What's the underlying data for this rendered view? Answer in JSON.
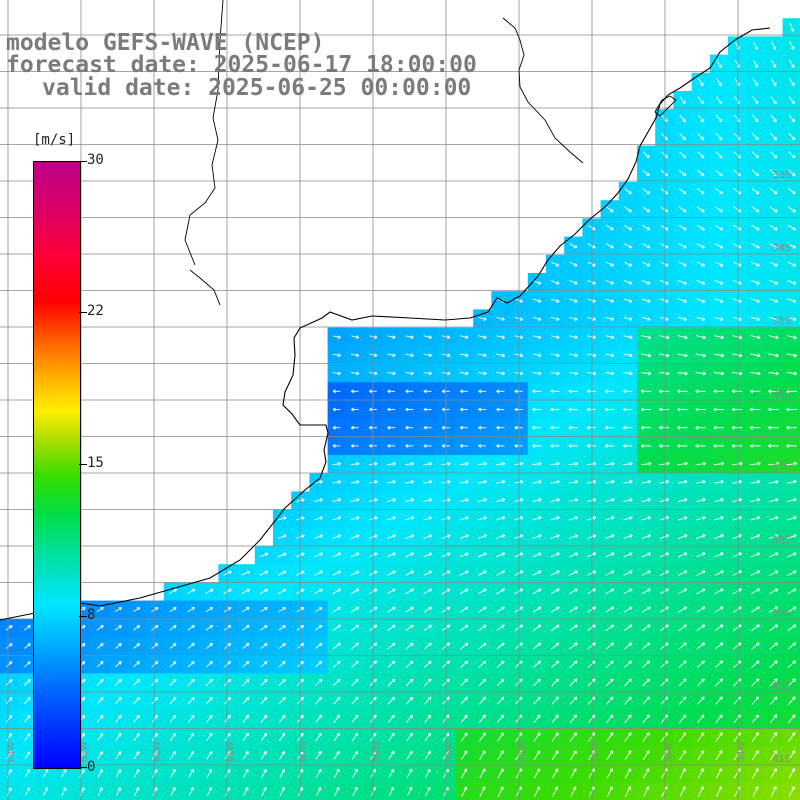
{
  "title": {
    "line1": "modelo GEFS-WAVE (NCEP)",
    "line2": "forecast date: 2025-06-17 18:00:00",
    "line3": "valid date: 2025-06-25 00:00:00"
  },
  "colorbar": {
    "unit": "[m/s]",
    "ticks": [
      "30",
      "22",
      "15",
      "8",
      "0"
    ],
    "tick_values": [
      30,
      22,
      15,
      8,
      0
    ],
    "range": [
      0,
      30
    ]
  },
  "grid": {
    "lat_labels": [
      "33S",
      "34S",
      "35S",
      "36S",
      "37S",
      "38S",
      "39S",
      "40S",
      "41S"
    ],
    "lon_labels": [
      "64W",
      "63W",
      "62W",
      "61W",
      "60W",
      "59W",
      "58W",
      "57W",
      "56W",
      "55W",
      "54W"
    ]
  },
  "colors": {
    "land": "#ffffff",
    "coast": "#000000",
    "grid": "#888888",
    "arrows": "#ffffff",
    "title": "#7b7b7b"
  }
}
